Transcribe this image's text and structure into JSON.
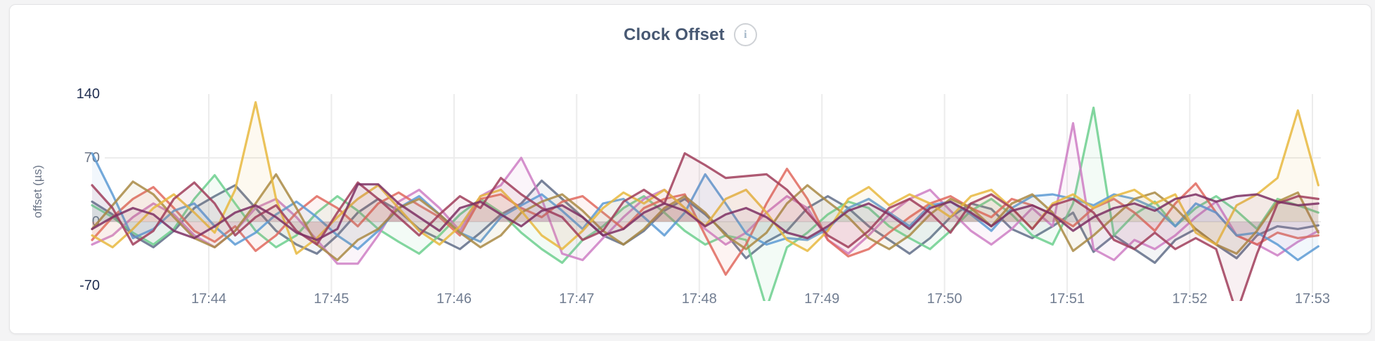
{
  "header": {
    "title": "Clock Offset",
    "info_icon": "i"
  },
  "colors": {
    "title": "#475872",
    "extreme_tick": "#1f2d50",
    "inner_tick": "#6b7486",
    "x_tick": "#717d91",
    "gridline": "#ececec",
    "card_background": "#ffffff",
    "page_background": "#f4f4f5"
  },
  "chart_data": {
    "type": "line",
    "title": "Clock Offset",
    "xlabel": "",
    "ylabel": "offset (µs)",
    "y_ticks": [
      140,
      70,
      0,
      -70
    ],
    "y_gridline_values": [
      70,
      0
    ],
    "ylim": [
      -80,
      165
    ],
    "x_ticks": [
      "17:44",
      "17:45",
      "17:46",
      "17:47",
      "17:48",
      "17:49",
      "17:50",
      "17:51",
      "17:52",
      "17:53"
    ],
    "x_step_seconds": 10,
    "grid": true,
    "legend": "none",
    "fill_to_zero": true,
    "series": [
      {
        "name": "slate",
        "color": "#606D88",
        "values": [
          22,
          8,
          -15,
          -28,
          -10,
          15,
          28,
          40,
          15,
          -10,
          -25,
          -35,
          -15,
          10,
          25,
          12,
          -8,
          -19,
          -30,
          -12,
          8,
          20,
          45,
          25,
          5,
          -15,
          -25,
          -10,
          12,
          25,
          8,
          -13,
          -40,
          -22,
          -10,
          15,
          28,
          15,
          -5,
          -20,
          -35,
          -18,
          5,
          20,
          14,
          -8,
          -18,
          -5,
          10,
          -33,
          -15,
          -30,
          -45,
          -20,
          -8,
          -25,
          -40,
          -15,
          -5,
          -8,
          -4
        ]
      },
      {
        "name": "green",
        "color": "#6CCF8E",
        "values": [
          18,
          5,
          -12,
          -25,
          -8,
          25,
          51,
          20,
          -10,
          -28,
          -15,
          10,
          28,
          12,
          -8,
          -22,
          -35,
          -15,
          8,
          25,
          10,
          -12,
          -30,
          -45,
          -20,
          -5,
          15,
          28,
          10,
          -10,
          -25,
          -15,
          -20,
          -95,
          -28,
          -12,
          8,
          22,
          15,
          -5,
          -18,
          -30,
          -10,
          12,
          25,
          8,
          -15,
          -25,
          20,
          125,
          -15,
          8,
          22,
          -5,
          15,
          28,
          12,
          -8,
          25,
          18,
          10
        ]
      },
      {
        "name": "magenta",
        "color": "#CE7EC4",
        "values": [
          -25,
          -15,
          5,
          20,
          8,
          -15,
          -28,
          -10,
          15,
          25,
          5,
          -20,
          -46,
          -46,
          -15,
          22,
          35,
          15,
          -10,
          28,
          40,
          70,
          25,
          -35,
          -42,
          -18,
          5,
          25,
          35,
          15,
          -8,
          -25,
          -12,
          10,
          28,
          15,
          -20,
          -35,
          -15,
          8,
          25,
          35,
          12,
          -10,
          -25,
          -8,
          15,
          -5,
          108,
          -30,
          -42,
          -20,
          -30,
          -15,
          5,
          22,
          -15,
          -25,
          -37,
          -22,
          -10
        ]
      },
      {
        "name": "salmon",
        "color": "#E0685E",
        "values": [
          -20,
          5,
          25,
          38,
          15,
          -10,
          -22,
          -5,
          -32,
          -15,
          10,
          28,
          15,
          -5,
          20,
          32,
          18,
          5,
          -15,
          25,
          30,
          15,
          5,
          22,
          28,
          10,
          -8,
          15,
          25,
          30,
          -15,
          -58,
          -25,
          20,
          58,
          25,
          -20,
          -38,
          -30,
          -12,
          5,
          20,
          28,
          15,
          5,
          25,
          18,
          8,
          -5,
          15,
          25,
          10,
          -10,
          20,
          42,
          10,
          -15,
          -25,
          -12,
          -18,
          -15
        ]
      },
      {
        "name": "blue",
        "color": "#5C9AD3",
        "values": [
          75,
          30,
          -18,
          -8,
          12,
          20,
          -5,
          -25,
          -12,
          8,
          22,
          5,
          -15,
          -30,
          -10,
          15,
          28,
          8,
          -12,
          -22,
          5,
          18,
          30,
          12,
          -8,
          20,
          25,
          5,
          -15,
          10,
          52,
          20,
          -13,
          -25,
          -18,
          -20,
          -8,
          15,
          25,
          10,
          -5,
          18,
          22,
          8,
          -10,
          15,
          28,
          30,
          25,
          18,
          30,
          25,
          15,
          -5,
          20,
          10,
          -15,
          -12,
          -25,
          -42,
          -27
        ]
      },
      {
        "name": "olive",
        "color": "#A98A44",
        "values": [
          -8,
          18,
          44,
          30,
          5,
          -18,
          -28,
          -10,
          20,
          52,
          15,
          -25,
          -42,
          -20,
          -8,
          15,
          25,
          8,
          -12,
          -28,
          -15,
          10,
          22,
          30,
          12,
          -10,
          -25,
          -8,
          15,
          28,
          10,
          -15,
          -30,
          -12,
          20,
          40,
          22,
          5,
          -18,
          -30,
          -15,
          8,
          25,
          15,
          -5,
          20,
          30,
          10,
          -32,
          -15,
          5,
          25,
          32,
          15,
          -8,
          -25,
          -35,
          -10,
          22,
          32,
          -12
        ]
      },
      {
        "name": "gold",
        "color": "#E7B83E",
        "values": [
          -15,
          -28,
          -8,
          15,
          30,
          10,
          -12,
          35,
          131,
          25,
          -35,
          -18,
          5,
          25,
          40,
          15,
          -10,
          -25,
          -5,
          28,
          35,
          12,
          -15,
          -30,
          -10,
          15,
          32,
          20,
          35,
          15,
          -5,
          25,
          35,
          10,
          -20,
          -32,
          -10,
          25,
          38,
          18,
          30,
          20,
          5,
          28,
          35,
          15,
          -8,
          20,
          30,
          15,
          28,
          35,
          20,
          30,
          -12,
          -25,
          18,
          30,
          48,
          122,
          40
        ]
      },
      {
        "name": "maroon",
        "color": "#A03D5B",
        "values": [
          40,
          15,
          -25,
          -10,
          25,
          43,
          20,
          -15,
          5,
          18,
          -10,
          -25,
          10,
          43,
          25,
          5,
          -15,
          8,
          28,
          15,
          48,
          30,
          15,
          5,
          -20,
          -10,
          22,
          35,
          20,
          75,
          62,
          48,
          50,
          52,
          35,
          10,
          -15,
          -28,
          -10,
          15,
          25,
          10,
          -12,
          20,
          30,
          15,
          -8,
          18,
          25,
          10,
          -20,
          -30,
          -12,
          -30,
          -18,
          -30,
          -100,
          -35,
          20,
          28,
          25
        ]
      },
      {
        "name": "purple",
        "color": "#7C2F63",
        "values": [
          -8,
          5,
          15,
          8,
          -10,
          -18,
          -5,
          10,
          18,
          5,
          -12,
          -20,
          -8,
          41,
          41,
          20,
          5,
          -10,
          15,
          22,
          8,
          -5,
          12,
          18,
          5,
          -15,
          -8,
          10,
          20,
          12,
          -5,
          8,
          15,
          5,
          -12,
          -18,
          -5,
          12,
          20,
          8,
          -8,
          15,
          22,
          10,
          -5,
          12,
          18,
          8,
          -10,
          5,
          15,
          20,
          12,
          25,
          30,
          22,
          28,
          30,
          22,
          18,
          20
        ]
      }
    ]
  }
}
